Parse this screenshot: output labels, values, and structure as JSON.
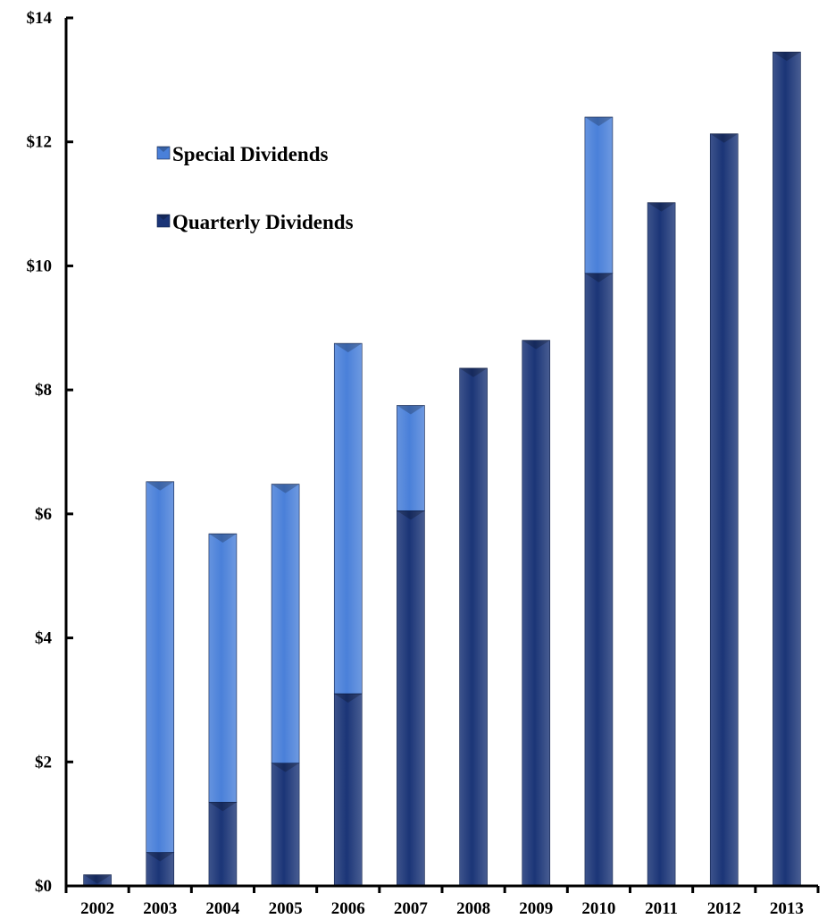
{
  "chart_data": {
    "type": "bar",
    "stacked": true,
    "title": "",
    "xlabel": "",
    "ylabel": "",
    "categories": [
      "2002",
      "2003",
      "2004",
      "2005",
      "2006",
      "2007",
      "2008",
      "2009",
      "2010",
      "2011",
      "2012",
      "2013"
    ],
    "series": [
      {
        "name": "Quarterly Dividends",
        "color": "#1b3577",
        "values": [
          0.18,
          0.54,
          1.35,
          1.98,
          3.1,
          6.05,
          8.35,
          8.8,
          9.88,
          11.02,
          12.13,
          13.45
        ]
      },
      {
        "name": "Special Dividends",
        "color": "#4a80d9",
        "values": [
          0,
          5.98,
          4.33,
          4.5,
          5.65,
          1.7,
          0,
          0,
          2.52,
          0,
          0,
          0
        ]
      }
    ],
    "ylim": [
      0,
      14
    ],
    "y_ticks": [
      {
        "value": 0,
        "label": "$0"
      },
      {
        "value": 2,
        "label": "$2"
      },
      {
        "value": 4,
        "label": "$4"
      },
      {
        "value": 6,
        "label": "$6"
      },
      {
        "value": 8,
        "label": "$8"
      },
      {
        "value": 10,
        "label": "$10"
      },
      {
        "value": 12,
        "label": "$12"
      },
      {
        "value": 14,
        "label": "$14"
      }
    ],
    "legend": {
      "placement": "upper-left",
      "entries": [
        {
          "label": "Special Dividends",
          "color": "#4a80d9"
        },
        {
          "label": "Quarterly Dividends",
          "color": "#1b3577"
        }
      ]
    },
    "grid": false
  }
}
